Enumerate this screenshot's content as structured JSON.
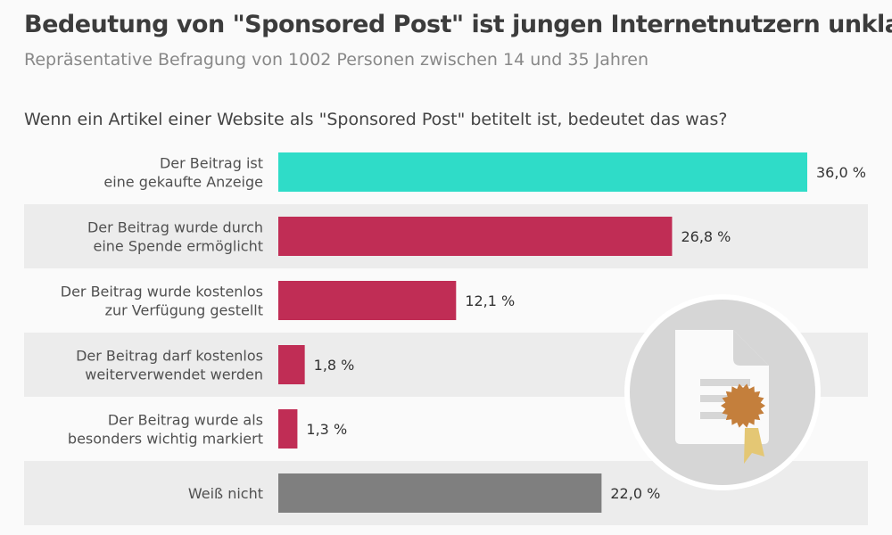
{
  "header": {
    "title": "Bedeutung von \"Sponsored Post\" ist jungen Internetnutzern unklar",
    "subtitle": "Repräsentative Befragung von 1002 Personen zwischen 14 und 35 Jahren",
    "question": "Wenn ein Artikel einer Website als \"Sponsored Post\" betitelt ist, bedeutet das was?"
  },
  "chart_data": {
    "type": "bar",
    "orientation": "horizontal",
    "title": "Bedeutung von \"Sponsored Post\" ist jungen Internetnutzern unklar",
    "subtitle": "Repräsentative Befragung von 1002 Personen zwischen 14 und 35 Jahren",
    "categories": [
      [
        "Der Beitrag ist",
        "eine gekaufte Anzeige"
      ],
      [
        "Der Beitrag wurde durch",
        "eine Spende ermöglicht"
      ],
      [
        "Der Beitrag wurde kostenlos",
        "zur Verfügung gestellt"
      ],
      [
        "Der Beitrag darf kostenlos",
        "weiterverwendet werden"
      ],
      [
        "Der Beitrag wurde als",
        "besonders wichtig markiert"
      ],
      [
        "Weiß nicht"
      ]
    ],
    "values": [
      36.0,
      26.8,
      12.1,
      1.8,
      1.3,
      22.0
    ],
    "value_labels": [
      "36,0 %",
      "26,8 %",
      "12,1 %",
      "1,8 %",
      "1,3 %",
      "22,0 %"
    ],
    "colors": [
      "#2fdcc8",
      "#c02d55",
      "#c02d55",
      "#c02d55",
      "#c02d55",
      "#7f7f7f"
    ],
    "xlim": [
      0,
      36
    ],
    "grid": false,
    "alternating_row_bands": true
  },
  "decoration": {
    "icon": "certificate-document-icon"
  }
}
